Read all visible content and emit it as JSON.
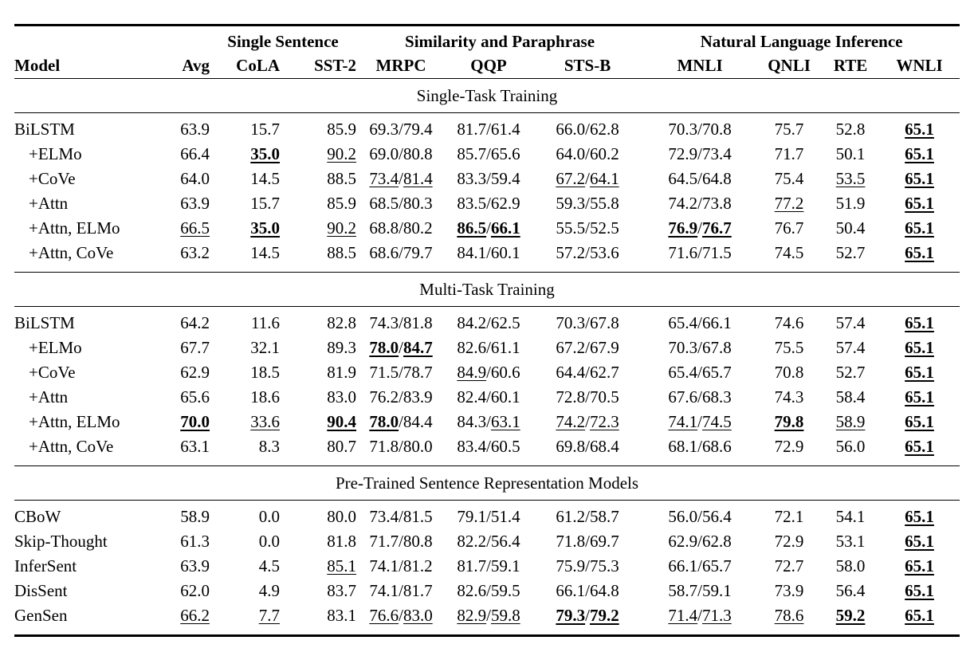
{
  "table": {
    "group_headers": [
      {
        "label": "",
        "span": 2,
        "cls": "gh0"
      },
      {
        "label": "Single Sentence",
        "span": 2,
        "cls": "gh1"
      },
      {
        "label": "Similarity and Paraphrase",
        "span": 3,
        "cls": "gh2"
      },
      {
        "label": "Natural Language Inference",
        "span": 4,
        "cls": "gh3"
      }
    ],
    "columns": [
      "Model",
      "Avg",
      "CoLA",
      "SST-2",
      "MRPC",
      "QQP",
      "STS-B",
      "MNLI",
      "QNLI",
      "RTE",
      "WNLI"
    ],
    "sections": [
      {
        "title": "Single-Task Training",
        "rows": [
          {
            "model": "BiLSTM",
            "indent": false,
            "values": [
              "63.9",
              "15.7",
              "85.9",
              "69.3/79.4",
              "81.7/61.4",
              "66.0/62.8",
              "70.3/70.8",
              "75.7",
              "52.8",
              "*65.1*"
            ]
          },
          {
            "model": "+ELMo",
            "indent": true,
            "values": [
              "66.4",
              "*35.0*",
              "_90.2_",
              "69.0/80.8",
              "85.7/65.6",
              "64.0/60.2",
              "72.9/73.4",
              "71.7",
              "50.1",
              "*65.1*"
            ]
          },
          {
            "model": "+CoVe",
            "indent": true,
            "values": [
              "64.0",
              "14.5",
              "88.5",
              "_73.4_/_81.4_",
              "83.3/59.4",
              "_67.2_/_64.1_",
              "64.5/64.8",
              "75.4",
              "_53.5_",
              "*65.1*"
            ]
          },
          {
            "model": "+Attn",
            "indent": true,
            "values": [
              "63.9",
              "15.7",
              "85.9",
              "68.5/80.3",
              "83.5/62.9",
              "59.3/55.8",
              "74.2/73.8",
              "_77.2_",
              "51.9",
              "*65.1*"
            ]
          },
          {
            "model": "+Attn, ELMo",
            "indent": true,
            "values": [
              "_66.5_",
              "*35.0*",
              "_90.2_",
              "68.8/80.2",
              "*86.5*/*66.1*",
              "55.5/52.5",
              "*76.9*/*76.7*",
              "76.7",
              "50.4",
              "*65.1*"
            ]
          },
          {
            "model": "+Attn, CoVe",
            "indent": true,
            "values": [
              "63.2",
              "14.5",
              "88.5",
              "68.6/79.7",
              "84.1/60.1",
              "57.2/53.6",
              "71.6/71.5",
              "74.5",
              "52.7",
              "*65.1*"
            ]
          }
        ]
      },
      {
        "title": "Multi-Task Training",
        "rows": [
          {
            "model": "BiLSTM",
            "indent": false,
            "values": [
              "64.2",
              "11.6",
              "82.8",
              "74.3/81.8",
              "84.2/62.5",
              "70.3/67.8",
              "65.4/66.1",
              "74.6",
              "57.4",
              "*65.1*"
            ]
          },
          {
            "model": "+ELMo",
            "indent": true,
            "values": [
              "67.7",
              "32.1",
              "89.3",
              "*78.0*/*84.7*",
              "82.6/61.1",
              "67.2/67.9",
              "70.3/67.8",
              "75.5",
              "57.4",
              "*65.1*"
            ]
          },
          {
            "model": "+CoVe",
            "indent": true,
            "values": [
              "62.9",
              "18.5",
              "81.9",
              "71.5/78.7",
              "_84.9_/60.6",
              "64.4/62.7",
              "65.4/65.7",
              "70.8",
              "52.7",
              "*65.1*"
            ]
          },
          {
            "model": "+Attn",
            "indent": true,
            "values": [
              "65.6",
              "18.6",
              "83.0",
              "76.2/83.9",
              "82.4/60.1",
              "72.8/70.5",
              "67.6/68.3",
              "74.3",
              "58.4",
              "*65.1*"
            ]
          },
          {
            "model": "+Attn, ELMo",
            "indent": true,
            "values": [
              "*70.0*",
              "_33.6_",
              "*90.4*",
              "*78.0*/84.4",
              "84.3/_63.1_",
              "_74.2_/_72.3_",
              "_74.1_/_74.5_",
              "*79.8*",
              "_58.9_",
              "*65.1*"
            ]
          },
          {
            "model": "+Attn, CoVe",
            "indent": true,
            "values": [
              "63.1",
              "8.3",
              "80.7",
              "71.8/80.0",
              "83.4/60.5",
              "69.8/68.4",
              "68.1/68.6",
              "72.9",
              "56.0",
              "*65.1*"
            ]
          }
        ]
      },
      {
        "title": "Pre-Trained Sentence Representation Models",
        "rows": [
          {
            "model": "CBoW",
            "indent": false,
            "values": [
              "58.9",
              "0.0",
              "80.0",
              "73.4/81.5",
              "79.1/51.4",
              "61.2/58.7",
              "56.0/56.4",
              "72.1",
              "54.1",
              "*65.1*"
            ]
          },
          {
            "model": "Skip-Thought",
            "indent": false,
            "values": [
              "61.3",
              "0.0",
              "81.8",
              "71.7/80.8",
              "82.2/56.4",
              "71.8/69.7",
              "62.9/62.8",
              "72.9",
              "53.1",
              "*65.1*"
            ]
          },
          {
            "model": "InferSent",
            "indent": false,
            "values": [
              "63.9",
              "4.5",
              "_85.1_",
              "74.1/81.2",
              "81.7/59.1",
              "75.9/75.3",
              "66.1/65.7",
              "72.7",
              "58.0",
              "*65.1*"
            ]
          },
          {
            "model": "DisSent",
            "indent": false,
            "values": [
              "62.0",
              "4.9",
              "83.7",
              "74.1/81.7",
              "82.6/59.5",
              "66.1/64.8",
              "58.7/59.1",
              "73.9",
              "56.4",
              "*65.1*"
            ]
          },
          {
            "model": "GenSen",
            "indent": false,
            "values": [
              "_66.2_",
              "_7.7_",
              "83.1",
              "_76.6_/_83.0_",
              "_82.9_/_59.8_",
              "*79.3*/*79.2*",
              "_71.4_/_71.3_",
              "_78.6_",
              "*59.2*",
              "*65.1*"
            ]
          }
        ]
      }
    ]
  }
}
